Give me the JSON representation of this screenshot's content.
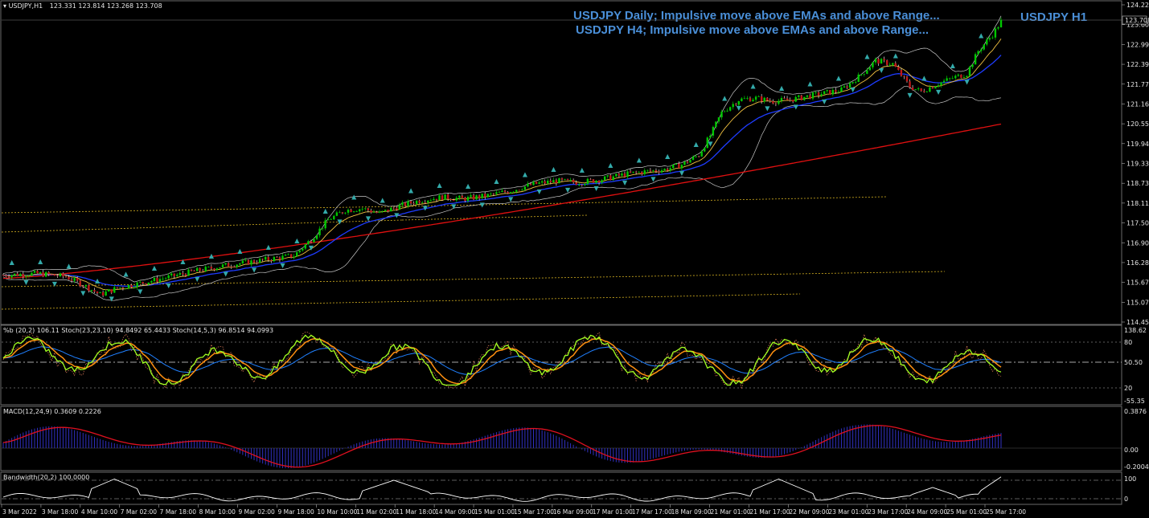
{
  "window": {
    "title": "USDJPY,H1",
    "title_prices": "123.331 123.814 123.268 123.708",
    "current_price": "123.708"
  },
  "annotations": {
    "daily": "USDJPY Daily; Impulsive move above EMAs and above Range...",
    "h4": "USDJPY H4; Impulsive move above EMAs and above Range...",
    "timeframe": "USDJPY H1"
  },
  "price_axis": [
    "124.220",
    "123.605",
    "122.990",
    "122.390",
    "121.775",
    "121.160",
    "120.550",
    "119.945",
    "119.330",
    "118.730",
    "118.115",
    "117.505",
    "116.900",
    "116.285",
    "115.670",
    "115.070",
    "114.455"
  ],
  "x_axis": [
    "3 Mar 2022",
    "3 Mar 18:00",
    "4 Mar 10:00",
    "7 Mar 02:00",
    "7 Mar 18:00",
    "8 Mar 10:00",
    "9 Mar 02:00",
    "9 Mar 18:00",
    "10 Mar 10:00",
    "11 Mar 02:00",
    "11 Mar 18:00",
    "14 Mar 09:00",
    "15 Mar 01:00",
    "15 Mar 17:00",
    "16 Mar 09:00",
    "17 Mar 01:00",
    "17 Mar 17:00",
    "18 Mar 09:00",
    "21 Mar 01:00",
    "21 Mar 17:00",
    "22 Mar 09:00",
    "23 Mar 01:00",
    "23 Mar 17:00",
    "24 Mar 09:00",
    "25 Mar 01:00",
    "25 Mar 17:00"
  ],
  "osc_panel": {
    "header": "%b (20,2) 106.11  Stoch(23,23,10) 94.8492 65.4433  Stoch(14,5,3) 96.8514 94.0993",
    "axis": [
      "138.62",
      "80",
      "50.50",
      "20",
      "-55.35"
    ]
  },
  "macd_panel": {
    "header": "MACD(12,24,9) 0.3609 0.2226",
    "axis": [
      "0.3876",
      "0.00",
      "-0.2004"
    ]
  },
  "bw_panel": {
    "header": "Bandwidth(20,2) 100.0000",
    "axis": [
      "100",
      "0"
    ]
  },
  "colors": {
    "background": "#000000",
    "bull_candle": "#00c800",
    "bear_candle": "#e0e0e0",
    "ema_fast": "#f0c040",
    "ema_mid": "#1e3cff",
    "ema_slow": "#e01010",
    "bbands": "#c8c8c8",
    "annotation": "#4a8fd8",
    "stoch_main": "#a0ff20",
    "stoch_signal": "#ff9010",
    "percent_b": "#2080ff",
    "macd_hist": "#3030c0",
    "macd_signal": "#e01020",
    "bandwidth": "#ffffff"
  },
  "chart_data": {
    "type": "candlestick",
    "symbol": "USDJPY",
    "timeframe": "H1",
    "ylim": [
      114.455,
      124.22
    ],
    "close_path": [
      [
        0,
        115.9
      ],
      [
        12,
        115.95
      ],
      [
        22,
        115.85
      ],
      [
        28,
        115.6
      ],
      [
        34,
        115.3
      ],
      [
        40,
        115.5
      ],
      [
        48,
        115.65
      ],
      [
        56,
        115.8
      ],
      [
        66,
        116.0
      ],
      [
        78,
        116.2
      ],
      [
        90,
        116.35
      ],
      [
        102,
        116.5
      ],
      [
        108,
        117.0
      ],
      [
        114,
        117.6
      ],
      [
        120,
        117.9
      ],
      [
        126,
        117.95
      ],
      [
        132,
        117.8
      ],
      [
        138,
        118.0
      ],
      [
        146,
        118.2
      ],
      [
        154,
        118.3
      ],
      [
        162,
        118.25
      ],
      [
        170,
        118.35
      ],
      [
        178,
        118.5
      ],
      [
        186,
        118.7
      ],
      [
        194,
        118.8
      ],
      [
        202,
        118.75
      ],
      [
        210,
        118.85
      ],
      [
        218,
        119.0
      ],
      [
        226,
        119.1
      ],
      [
        232,
        119.15
      ],
      [
        238,
        119.3
      ],
      [
        244,
        119.6
      ],
      [
        248,
        120.2
      ],
      [
        252,
        120.9
      ],
      [
        258,
        121.3
      ],
      [
        264,
        121.35
      ],
      [
        270,
        121.25
      ],
      [
        276,
        121.3
      ],
      [
        282,
        121.4
      ],
      [
        288,
        121.5
      ],
      [
        294,
        121.6
      ],
      [
        300,
        122.0
      ],
      [
        306,
        122.5
      ],
      [
        312,
        122.4
      ],
      [
        318,
        121.7
      ],
      [
        322,
        121.55
      ],
      [
        328,
        121.8
      ],
      [
        334,
        122.0
      ],
      [
        338,
        122.1
      ],
      [
        342,
        122.8
      ],
      [
        347,
        123.3
      ],
      [
        350,
        123.708
      ]
    ]
  }
}
